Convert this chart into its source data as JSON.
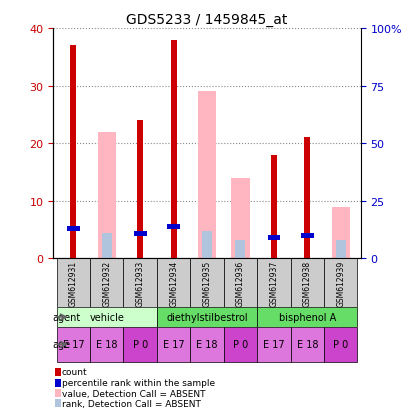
{
  "title": "GDS5233 / 1459845_at",
  "samples": [
    "GSM612931",
    "GSM612932",
    "GSM612933",
    "GSM612934",
    "GSM612935",
    "GSM612936",
    "GSM612937",
    "GSM612938",
    "GSM612939"
  ],
  "count_values": [
    37,
    0,
    24,
    38,
    0,
    0,
    18,
    21,
    0
  ],
  "rank_values": [
    13,
    0,
    11,
    14,
    0,
    0,
    9,
    10,
    0
  ],
  "absent_value": [
    0,
    22,
    0,
    0,
    29,
    14,
    0,
    0,
    9
  ],
  "absent_rank": [
    0,
    11,
    0,
    0,
    12,
    8,
    0,
    0,
    8
  ],
  "ages": [
    "E 17",
    "E 18",
    "P 0",
    "E 17",
    "E 18",
    "P 0",
    "E 17",
    "E 18",
    "P 0"
  ],
  "age_colors": [
    "#dd77dd",
    "#dd77dd",
    "#cc44cc",
    "#dd77dd",
    "#dd77dd",
    "#cc44cc",
    "#dd77dd",
    "#dd77dd",
    "#cc44cc"
  ],
  "age_color_base": "#dd77dd",
  "left_ylim": [
    0,
    40
  ],
  "right_ylim": [
    0,
    100
  ],
  "left_yticks": [
    0,
    10,
    20,
    30,
    40
  ],
  "right_yticks": [
    0,
    25,
    50,
    75,
    100
  ],
  "right_yticklabels": [
    "0",
    "25",
    "50",
    "75",
    "100%"
  ],
  "color_count": "#cc0000",
  "color_rank": "#0000cc",
  "color_absent_value": "#ffb6c1",
  "color_absent_rank": "#b0c4de",
  "color_sample_bg": "#cccccc",
  "agent_data": [
    {
      "label": "vehicle",
      "color": "#ccffcc",
      "cols": [
        0,
        1,
        2
      ]
    },
    {
      "label": "diethylstilbestrol",
      "color": "#66dd66",
      "cols": [
        3,
        4,
        5
      ]
    },
    {
      "label": "bisphenol A",
      "color": "#66dd66",
      "cols": [
        6,
        7,
        8
      ]
    }
  ]
}
